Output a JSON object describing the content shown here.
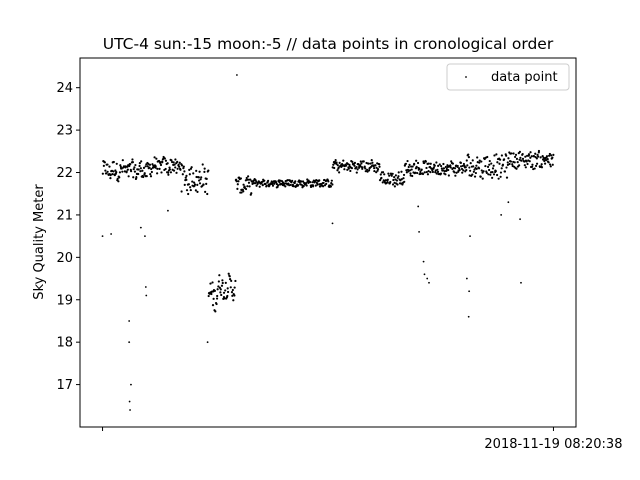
{
  "chart_data": {
    "type": "scatter",
    "title": "UTC-4 sun:-15 moon:-5 // data points in cronological order",
    "xlabel": "",
    "ylabel": "Sky Quality Meter",
    "x_tick_labels": [
      "",
      "2018-11-19 08:20:38"
    ],
    "y_ticks": [
      17,
      18,
      19,
      20,
      21,
      22,
      23,
      24
    ],
    "ylim": [
      16.0,
      24.7
    ],
    "xlim": [
      -0.05,
      1.05
    ],
    "grid": false,
    "legend": {
      "position": "top-right",
      "entries": [
        "data point"
      ]
    },
    "marker_color": "#000000",
    "series": [
      {
        "name": "data point",
        "points": [
          [
            0.0,
            20.5
          ],
          [
            0.019,
            20.55
          ],
          [
            0.059,
            18.5
          ],
          [
            0.059,
            18.0
          ],
          [
            0.06,
            16.6
          ],
          [
            0.061,
            16.4
          ],
          [
            0.063,
            17.0
          ],
          [
            0.075,
            21.9
          ],
          [
            0.085,
            20.7
          ],
          [
            0.094,
            20.5
          ],
          [
            0.096,
            19.3
          ],
          [
            0.097,
            19.1
          ],
          [
            0.145,
            21.1
          ],
          [
            0.233,
            18.0
          ],
          [
            0.298,
            24.3
          ],
          [
            0.51,
            20.8
          ],
          [
            0.7,
            21.2
          ],
          [
            0.702,
            20.6
          ],
          [
            0.712,
            19.9
          ],
          [
            0.714,
            19.6
          ],
          [
            0.72,
            19.5
          ],
          [
            0.724,
            19.4
          ],
          [
            0.815,
            20.5
          ],
          [
            0.812,
            18.6
          ],
          [
            0.813,
            19.2
          ],
          [
            0.808,
            19.5
          ],
          [
            0.928,
            19.4
          ],
          [
            0.926,
            20.9
          ],
          [
            0.884,
            21.0
          ],
          [
            0.9,
            21.3
          ]
        ],
        "bands": [
          {
            "x": [
              0.0,
              0.11
            ],
            "center": 22.05,
            "amp": 0.2
          },
          {
            "x": [
              0.11,
              0.175
            ],
            "center": 22.15,
            "amp": 0.18
          },
          {
            "x": [
              0.175,
              0.235
            ],
            "center": 21.85,
            "amp": 0.3
          },
          {
            "x": [
              0.235,
              0.255
            ],
            "center": 19.1,
            "amp": 0.3
          },
          {
            "x": [
              0.255,
              0.295
            ],
            "center": 19.3,
            "amp": 0.25
          },
          {
            "x": [
              0.295,
              0.33
            ],
            "center": 21.7,
            "amp": 0.18
          },
          {
            "x": [
              0.33,
              0.51
            ],
            "center": 21.75,
            "amp": 0.08
          },
          {
            "x": [
              0.51,
              0.615
            ],
            "center": 22.15,
            "amp": 0.12
          },
          {
            "x": [
              0.615,
              0.67
            ],
            "center": 21.85,
            "amp": 0.15
          },
          {
            "x": [
              0.67,
              0.805
            ],
            "center": 22.1,
            "amp": 0.15
          },
          {
            "x": [
              0.805,
              0.9
            ],
            "center": 22.15,
            "amp": 0.25
          },
          {
            "x": [
              0.9,
              1.0
            ],
            "center": 22.3,
            "amp": 0.18
          }
        ]
      }
    ]
  }
}
